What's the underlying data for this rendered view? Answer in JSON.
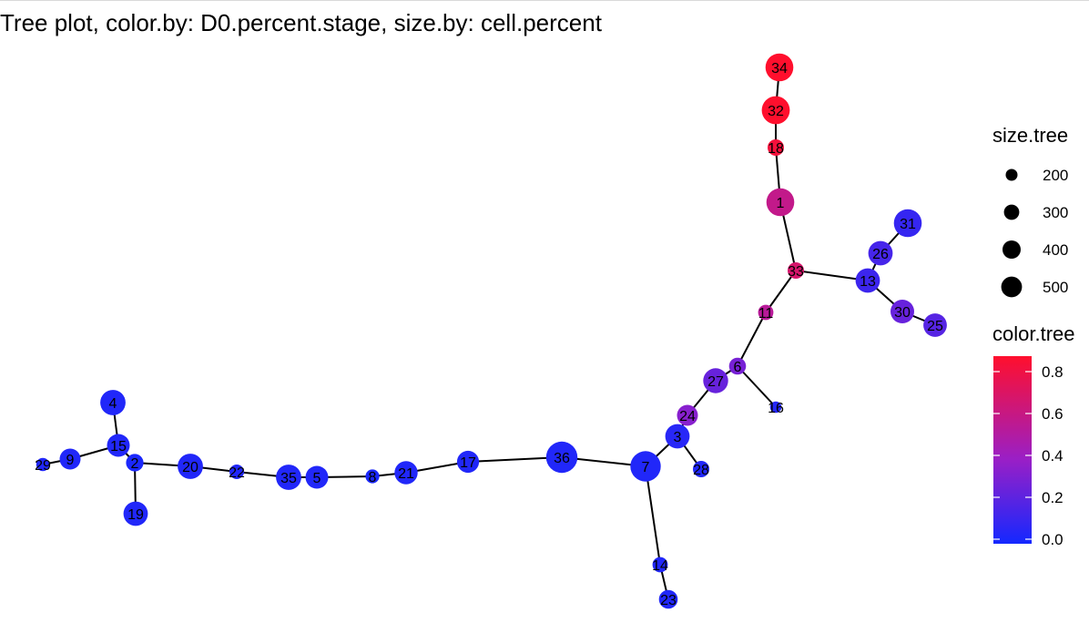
{
  "title": "Tree plot, color.by: D0.percent.stage, size.by: cell.percent",
  "colors": {
    "low": "#1428ff",
    "mid": "#9a1fc6",
    "high": "#ff0f2d",
    "edge": "#000000"
  },
  "legend": {
    "size_title": "size.tree",
    "size_entries": [
      {
        "label": "200",
        "value": 200
      },
      {
        "label": "300",
        "value": 300
      },
      {
        "label": "400",
        "value": 400
      },
      {
        "label": "500",
        "value": 500
      }
    ],
    "color_title": "color.tree",
    "color_ticks": [
      {
        "label": "0.8",
        "value": 0.8
      },
      {
        "label": "0.6",
        "value": 0.6
      },
      {
        "label": "0.4",
        "value": 0.4
      },
      {
        "label": "0.2",
        "value": 0.2
      },
      {
        "label": "0.0",
        "value": 0.0
      }
    ]
  },
  "nodes": [
    {
      "id": "1",
      "color": 0.6,
      "size": 420
    },
    {
      "id": "2",
      "color": 0.02,
      "size": 120
    },
    {
      "id": "3",
      "color": 0.06,
      "size": 300
    },
    {
      "id": "4",
      "color": 0.04,
      "size": 330
    },
    {
      "id": "5",
      "color": 0.04,
      "size": 250
    },
    {
      "id": "6",
      "color": 0.3,
      "size": 110
    },
    {
      "id": "7",
      "color": 0.04,
      "size": 520
    },
    {
      "id": "8",
      "color": 0.02,
      "size": 60
    },
    {
      "id": "9",
      "color": 0.04,
      "size": 200
    },
    {
      "id": "11",
      "color": 0.55,
      "size": 80
    },
    {
      "id": "13",
      "color": 0.12,
      "size": 300
    },
    {
      "id": "14",
      "color": 0.04,
      "size": 80
    },
    {
      "id": "15",
      "color": 0.04,
      "size": 250
    },
    {
      "id": "16",
      "color": 0.05,
      "size": 30
    },
    {
      "id": "17",
      "color": 0.04,
      "size": 230
    },
    {
      "id": "18",
      "color": 0.85,
      "size": 100
    },
    {
      "id": "19",
      "color": 0.04,
      "size": 300
    },
    {
      "id": "20",
      "color": 0.04,
      "size": 330
    },
    {
      "id": "21",
      "color": 0.04,
      "size": 260
    },
    {
      "id": "22",
      "color": 0.04,
      "size": 70
    },
    {
      "id": "23",
      "color": 0.04,
      "size": 150
    },
    {
      "id": "24",
      "color": 0.35,
      "size": 200
    },
    {
      "id": "25",
      "color": 0.2,
      "size": 270
    },
    {
      "id": "26",
      "color": 0.15,
      "size": 300
    },
    {
      "id": "27",
      "color": 0.25,
      "size": 320
    },
    {
      "id": "28",
      "color": 0.04,
      "size": 100
    },
    {
      "id": "29",
      "color": 0.04,
      "size": 50
    },
    {
      "id": "30",
      "color": 0.25,
      "size": 280
    },
    {
      "id": "31",
      "color": 0.1,
      "size": 420
    },
    {
      "id": "32",
      "color": 0.9,
      "size": 430
    },
    {
      "id": "33",
      "color": 0.7,
      "size": 100
    },
    {
      "id": "34",
      "color": 0.92,
      "size": 420
    },
    {
      "id": "35",
      "color": 0.04,
      "size": 330
    },
    {
      "id": "36",
      "color": 0.04,
      "size": 560
    }
  ],
  "edges": [
    [
      "34",
      "32"
    ],
    [
      "32",
      "18"
    ],
    [
      "18",
      "1"
    ],
    [
      "1",
      "33"
    ],
    [
      "33",
      "13"
    ],
    [
      "13",
      "26"
    ],
    [
      "26",
      "31"
    ],
    [
      "13",
      "30"
    ],
    [
      "30",
      "25"
    ],
    [
      "33",
      "11"
    ],
    [
      "11",
      "6"
    ],
    [
      "6",
      "16"
    ],
    [
      "6",
      "27"
    ],
    [
      "27",
      "24"
    ],
    [
      "24",
      "3"
    ],
    [
      "3",
      "28"
    ],
    [
      "3",
      "7"
    ],
    [
      "7",
      "14"
    ],
    [
      "14",
      "23"
    ],
    [
      "7",
      "36"
    ],
    [
      "36",
      "17"
    ],
    [
      "17",
      "21"
    ],
    [
      "21",
      "8"
    ],
    [
      "8",
      "5"
    ],
    [
      "5",
      "35"
    ],
    [
      "35",
      "22"
    ],
    [
      "22",
      "20"
    ],
    [
      "20",
      "2"
    ],
    [
      "2",
      "15"
    ],
    [
      "2",
      "19"
    ],
    [
      "15",
      "4"
    ],
    [
      "15",
      "9"
    ],
    [
      "9",
      "29"
    ]
  ]
}
